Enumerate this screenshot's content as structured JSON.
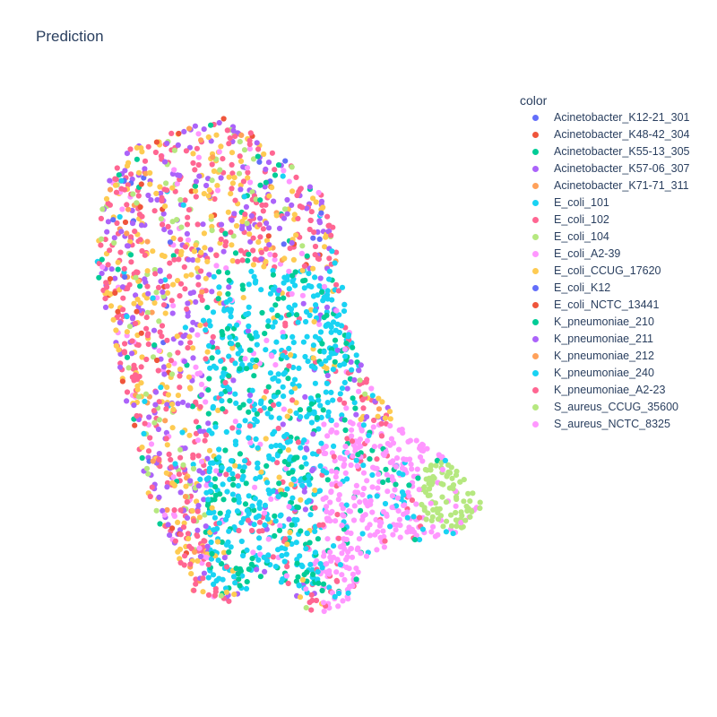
{
  "chart_data": {
    "type": "scatter",
    "title": "Prediction",
    "legend_title": "color",
    "legend_position": "right",
    "grid": false,
    "axes_visible": false,
    "series": [
      {
        "name": "Acinetobacter_K12-21_301",
        "color": "#636efa"
      },
      {
        "name": "Acinetobacter_K48-42_304",
        "color": "#EF553B"
      },
      {
        "name": "Acinetobacter_K55-13_305",
        "color": "#00cc96"
      },
      {
        "name": "Acinetobacter_K57-06_307",
        "color": "#ab63fa"
      },
      {
        "name": "Acinetobacter_K71-71_311",
        "color": "#FFA15A"
      },
      {
        "name": "E_coli_101",
        "color": "#19d3f3"
      },
      {
        "name": "E_coli_102",
        "color": "#FF6692"
      },
      {
        "name": "E_coli_104",
        "color": "#B6E880"
      },
      {
        "name": "E_coli_A2-39",
        "color": "#FF97FF"
      },
      {
        "name": "E_coli_CCUG_17620",
        "color": "#FECB52"
      },
      {
        "name": "E_coli_K12",
        "color": "#636efa"
      },
      {
        "name": "E_coli_NCTC_13441",
        "color": "#EF553B"
      },
      {
        "name": "K_pneumoniae_210",
        "color": "#00cc96"
      },
      {
        "name": "K_pneumoniae_211",
        "color": "#ab63fa"
      },
      {
        "name": "K_pneumoniae_212",
        "color": "#FFA15A"
      },
      {
        "name": "K_pneumoniae_240",
        "color": "#19d3f3"
      },
      {
        "name": "K_pneumoniae_A2-23",
        "color": "#FF6692"
      },
      {
        "name": "S_aureus_CCUG_35600",
        "color": "#B6E880"
      },
      {
        "name": "S_aureus_NCTC_8325",
        "color": "#FF97FF"
      }
    ]
  }
}
